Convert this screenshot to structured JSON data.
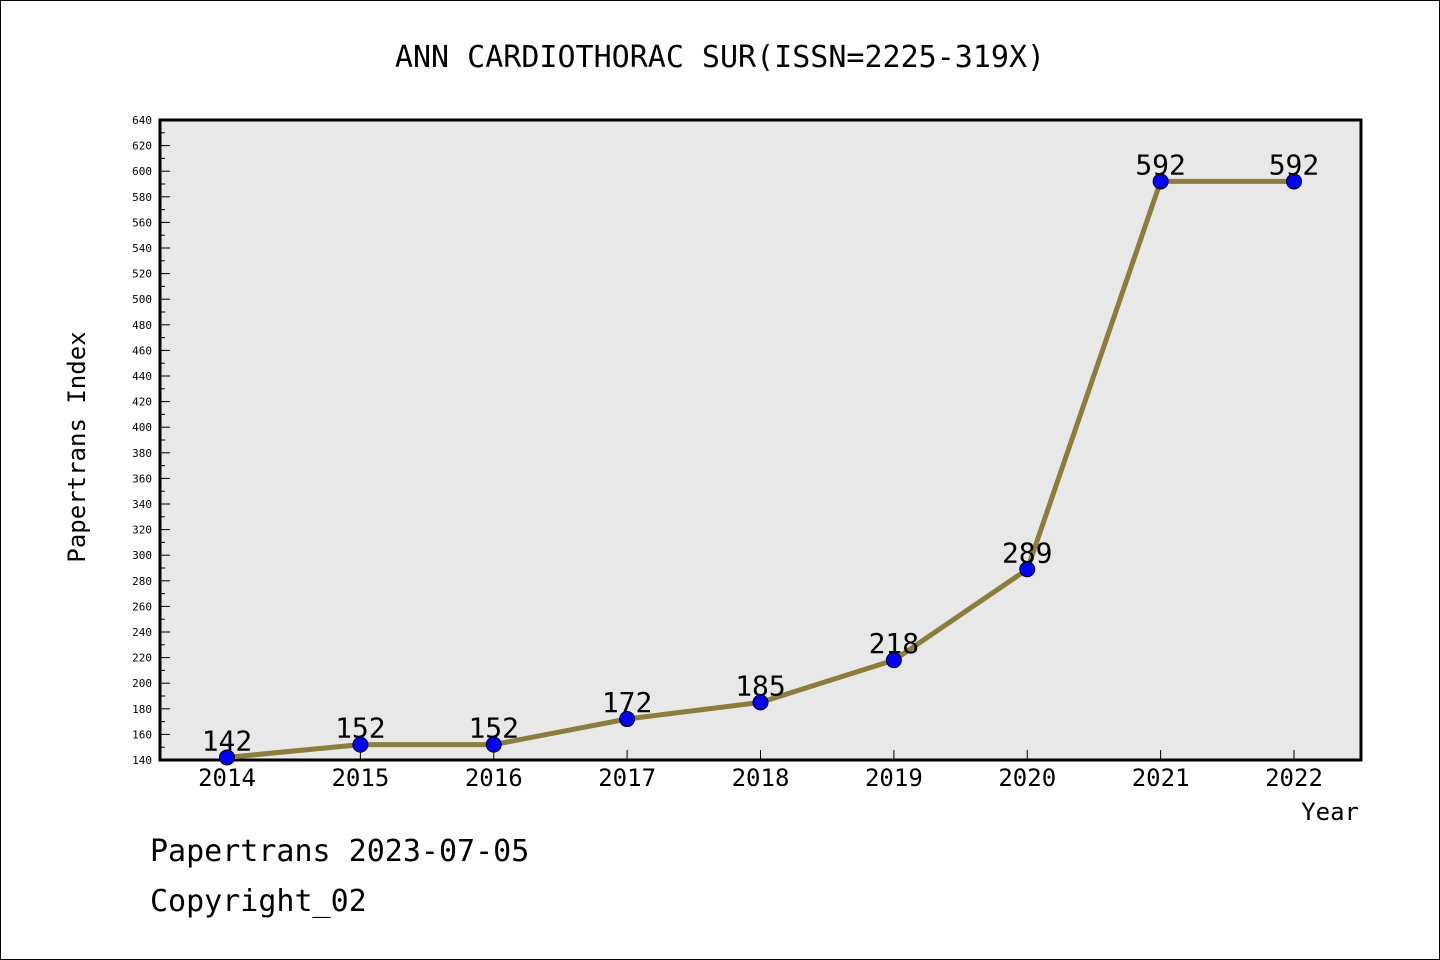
{
  "chart_data": {
    "type": "line",
    "title": "ANN CARDIOTHORAC SUR(ISSN=2225-319X)",
    "xlabel": "Year",
    "ylabel": "Papertrans Index",
    "x": [
      "2014",
      "2015",
      "2016",
      "2017",
      "2018",
      "2019",
      "2020",
      "2021",
      "2022"
    ],
    "series": [
      {
        "values": [
          142,
          152,
          152,
          172,
          185,
          218,
          289,
          592,
          592
        ],
        "line_color": "#8b7d3a",
        "marker_color": "#0000ff"
      }
    ],
    "data_labels": [
      "142",
      "152",
      "152",
      "172",
      "185",
      "218",
      "289",
      "592",
      "592"
    ],
    "ylim": [
      140,
      640
    ],
    "y_ticks": [
      "140",
      "160",
      "180",
      "200",
      "220",
      "240",
      "260",
      "280",
      "300",
      "320",
      "340",
      "360",
      "380",
      "400",
      "420",
      "440",
      "460",
      "480",
      "500",
      "520",
      "540",
      "560",
      "580",
      "600",
      "620",
      "640"
    ],
    "plot_background": "#e8e8e8",
    "grid": false
  },
  "footer": {
    "line1": "Papertrans 2023-07-05",
    "line2": "Copyright_02"
  }
}
